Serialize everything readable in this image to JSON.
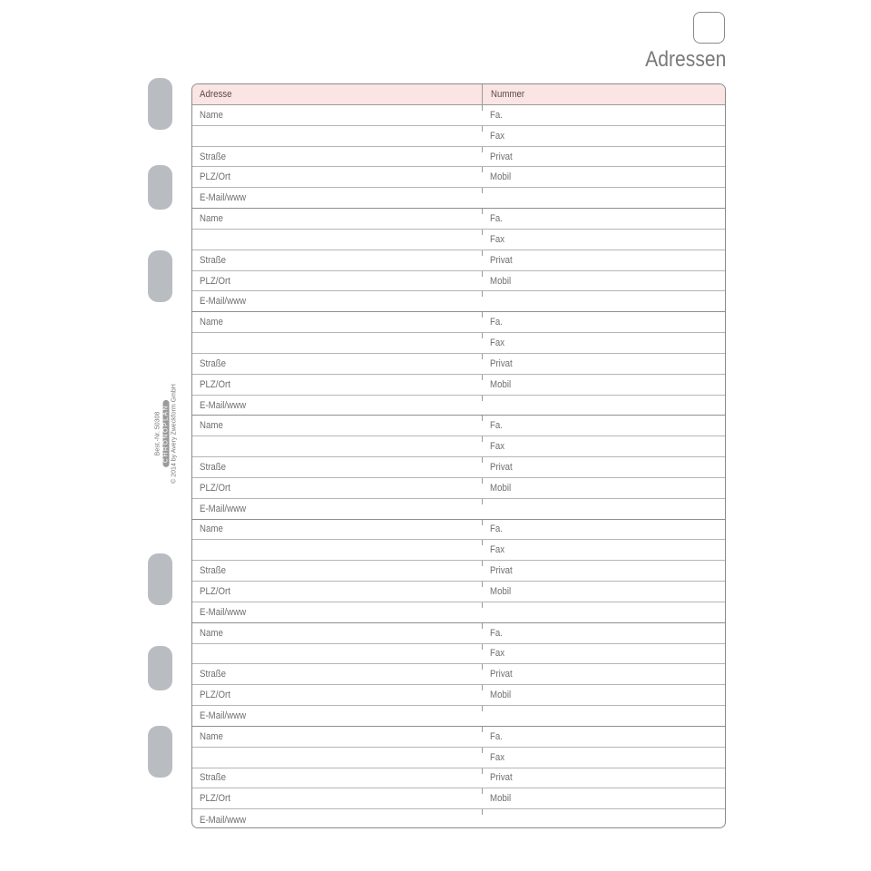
{
  "page": {
    "title": "Adressen"
  },
  "table": {
    "headers": [
      "Adresse",
      "Nummer"
    ],
    "entry_rows": [
      [
        "Name",
        "Fa."
      ],
      [
        "",
        "Fax"
      ],
      [
        "Straße",
        "Privat"
      ],
      [
        "PLZ/Ort",
        "Mobil"
      ],
      [
        "E-Mail/www",
        ""
      ]
    ],
    "entry_count": 7
  },
  "side": {
    "order_no": "Best.-Nr. 50308",
    "brand": "CHRONOPLAN",
    "copyright": "© 2014 by Avery Zweckform GmbH"
  },
  "colors": {
    "header_bg": "#fbe5e4",
    "holes": "#b9bcc0"
  }
}
